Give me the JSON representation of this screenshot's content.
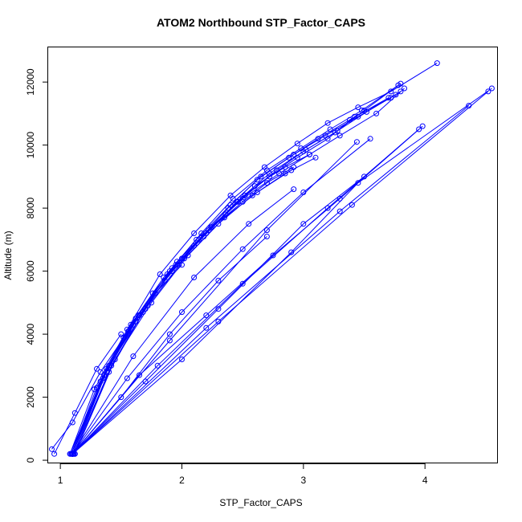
{
  "chart_data": {
    "type": "scatter",
    "title": "ATOM2 Northbound STP_Factor_CAPS",
    "xlabel": "STP_Factor_CAPS",
    "ylabel": "Altitude (m)",
    "xlim": [
      0.9,
      4.6
    ],
    "ylim": [
      -100,
      13100
    ],
    "xticks": [
      1,
      2,
      3,
      4
    ],
    "yticks": [
      0,
      2000,
      4000,
      6000,
      8000,
      10000,
      12000
    ],
    "grid": false,
    "color": "#0000ff",
    "marker": "open-circle",
    "series": [
      {
        "x": [
          1.08,
          1.28,
          1.55,
          1.82,
          2.1,
          2.4,
          2.68,
          2.95,
          3.2,
          3.45,
          3.72,
          4.1
        ],
        "y": [
          200,
          2250,
          4150,
          5900,
          7200,
          8400,
          9300,
          10050,
          10700,
          11200,
          11700,
          12600
        ]
      },
      {
        "x": [
          1.1,
          1.35,
          1.62,
          1.9,
          2.18,
          2.45,
          2.72,
          3.0,
          3.26,
          3.5,
          3.8
        ],
        "y": [
          200,
          2600,
          4500,
          6000,
          7100,
          8200,
          9100,
          9800,
          10400,
          11100,
          11950
        ]
      },
      {
        "x": [
          1.12,
          1.4,
          1.68,
          1.95,
          2.22,
          2.5,
          2.8,
          3.05,
          3.3,
          3.6,
          3.83
        ],
        "y": [
          200,
          2800,
          4700,
          6200,
          7300,
          8300,
          9100,
          9700,
          10300,
          11000,
          11800
        ]
      },
      {
        "x": [
          1.1,
          1.33,
          1.58,
          1.85,
          2.12,
          2.4,
          2.65,
          2.92,
          3.18,
          3.45,
          3.76
        ],
        "y": [
          200,
          2500,
          4300,
          5800,
          7000,
          8100,
          9000,
          9700,
          10300,
          10900,
          11600
        ]
      },
      {
        "x": [
          1.09,
          1.38,
          1.64,
          1.92,
          2.16,
          2.42,
          2.7,
          2.98,
          3.22,
          3.48,
          3.78
        ],
        "y": [
          200,
          2900,
          4600,
          6100,
          7200,
          8300,
          9200,
          9900,
          10500,
          11100,
          11900
        ]
      },
      {
        "x": [
          1.08,
          1.36,
          1.62,
          1.88,
          2.14,
          2.38,
          2.62,
          2.88,
          3.12,
          3.38,
          3.7
        ],
        "y": [
          200,
          2700,
          4400,
          5900,
          7000,
          8000,
          8900,
          9600,
          10200,
          10800,
          11500
        ]
      },
      {
        "x": [
          1.11,
          1.42,
          1.7,
          1.96,
          2.24,
          2.52,
          2.78,
          3.02,
          3.28,
          3.52,
          3.8
        ],
        "y": [
          200,
          3000,
          4800,
          6300,
          7400,
          8400,
          9200,
          9850,
          10450,
          11050,
          11700
        ]
      },
      {
        "x": [
          1.1,
          1.35,
          1.6,
          1.86,
          2.1,
          2.36,
          2.6,
          2.85,
          3.05
        ],
        "y": [
          200,
          2600,
          4300,
          5700,
          6800,
          7800,
          8700,
          9300,
          9700
        ]
      },
      {
        "x": [
          1.09,
          1.3,
          1.52,
          1.76,
          2.0,
          2.25,
          2.5,
          2.7,
          2.92
        ],
        "y": [
          200,
          2300,
          3900,
          5300,
          6400,
          7400,
          8200,
          8800,
          9300
        ]
      },
      {
        "x": [
          1.12,
          1.45,
          1.75,
          2.05,
          2.35,
          2.62,
          2.9
        ],
        "y": [
          200,
          3200,
          5000,
          6500,
          7700,
          8500,
          9200
        ]
      },
      {
        "x": [
          1.1,
          1.4,
          1.72,
          2.02,
          2.3,
          2.58,
          2.85,
          3.1
        ],
        "y": [
          200,
          3000,
          4900,
          6400,
          7500,
          8400,
          9100,
          9600
        ]
      },
      {
        "x": [
          0.93,
          1.1,
          1.33,
          1.56,
          1.78,
          2.0
        ],
        "y": [
          350,
          1200,
          2800,
          4100,
          5300,
          6200
        ]
      },
      {
        "x": [
          0.95,
          1.12,
          1.3,
          1.5
        ],
        "y": [
          200,
          1500,
          2900,
          4000
        ]
      },
      {
        "x": [
          1.11,
          1.38,
          1.65,
          1.92,
          2.2,
          2.46,
          2.72,
          2.95,
          3.2,
          3.42,
          3.72
        ],
        "y": [
          200,
          2800,
          4600,
          6000,
          7200,
          8200,
          9000,
          9600,
          10200,
          10900,
          11500
        ]
      },
      {
        "x": [
          1.1,
          1.65,
          2.2,
          2.75,
          3.3,
          3.98
        ],
        "y": [
          200,
          2700,
          4600,
          6500,
          8300,
          10600
        ]
      },
      {
        "x": [
          1.1,
          1.8,
          2.5,
          3.2,
          3.95
        ],
        "y": [
          200,
          3000,
          5600,
          8000,
          10500
        ]
      },
      {
        "x": [
          1.1,
          2.2,
          3.3,
          4.36
        ],
        "y": [
          200,
          4200,
          7900,
          11250
        ]
      },
      {
        "x": [
          1.1,
          2.3,
          3.4,
          4.52
        ],
        "y": [
          200,
          4400,
          8100,
          11700
        ]
      },
      {
        "x": [
          1.1,
          1.9,
          2.7,
          3.44
        ],
        "y": [
          200,
          3800,
          7300,
          10100
        ]
      },
      {
        "x": [
          1.1,
          1.6,
          2.1,
          2.55,
          2.92
        ],
        "y": [
          200,
          3300,
          5800,
          7500,
          8600
        ]
      },
      {
        "x": [
          1.1,
          1.55,
          2.0,
          2.5,
          3.0,
          3.55
        ],
        "y": [
          200,
          2600,
          4700,
          6700,
          8500,
          10200
        ]
      },
      {
        "x": [
          1.1,
          2.0,
          2.9,
          3.45,
          4.55
        ],
        "y": [
          200,
          3200,
          6600,
          8800,
          11800
        ]
      },
      {
        "x": [
          1.1,
          1.7,
          2.3,
          3.0,
          3.5
        ],
        "y": [
          200,
          2500,
          4800,
          7500,
          9000
        ]
      },
      {
        "x": [
          1.1,
          1.5,
          1.9,
          2.3,
          2.7
        ],
        "y": [
          200,
          2000,
          4000,
          5700,
          7100
        ]
      }
    ]
  }
}
